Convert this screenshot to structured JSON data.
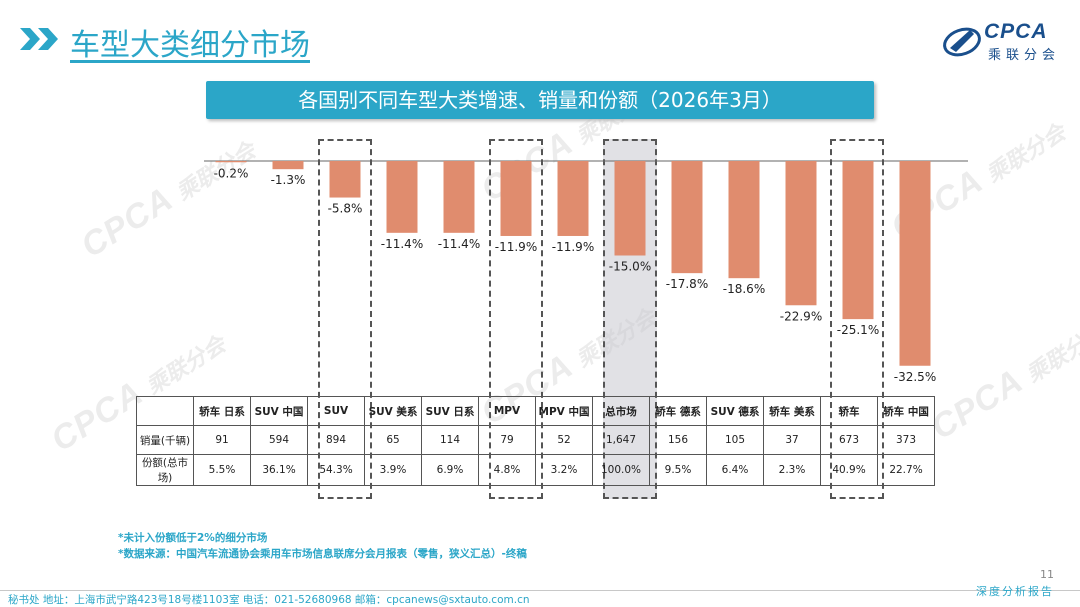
{
  "page": {
    "title": "车型大类细分市场",
    "page_number": "11",
    "logo_text": "CPCA",
    "logo_subtext": "乘联分会",
    "watermark_text": "CPCA",
    "watermark_subtext": "乘联分会"
  },
  "chart_data": {
    "type": "bar",
    "title": "各国别不同车型大类增速、销量和份额（2026年3月）",
    "categories": [
      "轿车 日系",
      "SUV 中国",
      "SUV",
      "SUV 美系",
      "SUV 日系",
      "MPV",
      "MPV 中国",
      "总市场",
      "轿车 德系",
      "SUV 德系",
      "轿车 美系",
      "轿车",
      "轿车 中国"
    ],
    "values": [
      -0.2,
      -1.3,
      -5.8,
      -11.4,
      -11.4,
      -11.9,
      -11.9,
      -15.0,
      -17.8,
      -18.6,
      -22.9,
      -25.1,
      -32.5
    ],
    "value_labels": [
      "-0.2%",
      "-1.3%",
      "-5.8%",
      "-11.4%",
      "-11.4%",
      "-11.9%",
      "-11.9%",
      "-15.0%",
      "-17.8%",
      "-18.6%",
      "-22.9%",
      "-25.1%",
      "-32.5%"
    ],
    "ylim": [
      -35,
      0
    ],
    "bar_color": "#e08c6e",
    "highlighted": [
      "SUV",
      "MPV",
      "总市场",
      "轿车"
    ],
    "table": {
      "row_labels": [
        "销量(千辆)",
        "份额(总市场)"
      ],
      "sales": [
        "91",
        "594",
        "894",
        "65",
        "114",
        "79",
        "52",
        "1,647",
        "156",
        "105",
        "37",
        "673",
        "373"
      ],
      "share": [
        "5.5%",
        "36.1%",
        "54.3%",
        "3.9%",
        "6.9%",
        "4.8%",
        "3.2%",
        "100.0%",
        "9.5%",
        "6.4%",
        "2.3%",
        "40.9%",
        "22.7%"
      ]
    }
  },
  "notes": [
    "*未计入份额低于2%的细分市场",
    "*数据来源：中国汽车流通协会乘用车市场信息联席分会月报表（零售，狭义汇总）-终稿"
  ],
  "footer": {
    "left": "秘书处   地址：上海市武宁路423号18号楼1103室   电话：021-52680968   邮箱：cpcanews@sxtauto.com.cn",
    "right": "深度分析报告"
  },
  "colors": {
    "accent": "#2ba6c8",
    "bar": "#e08c6e",
    "logo": "#1a4f8c"
  }
}
